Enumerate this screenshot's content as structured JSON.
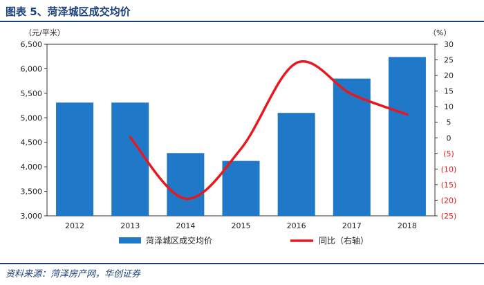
{
  "header": {
    "title": "图表 5、菏泽城区成交均价"
  },
  "chart_data": {
    "type": "bar",
    "categories": [
      "2012",
      "2013",
      "2014",
      "2015",
      "2016",
      "2017",
      "2018"
    ],
    "left_axis": {
      "unit": "（元/平米）",
      "ylim": [
        3000,
        6500
      ],
      "ticks": [
        "3,000",
        "3,500",
        "4,000",
        "4,500",
        "5,000",
        "5,500",
        "6,000",
        "6,500"
      ]
    },
    "right_axis": {
      "unit": "（%）",
      "ylim": [
        -25,
        30
      ],
      "ticks": [
        "(25)",
        "(20)",
        "(15)",
        "(10)",
        "(5)",
        "0",
        "5",
        "10",
        "15",
        "20",
        "25",
        "30"
      ]
    },
    "series": [
      {
        "name": "菏泽城区成交均价",
        "type": "bar",
        "axis": "left",
        "color": "#1f78c8",
        "values": [
          5310,
          5310,
          4280,
          4120,
          5100,
          5800,
          6240
        ]
      },
      {
        "name": "同比（右轴）",
        "type": "line",
        "axis": "right",
        "color": "#e8191e",
        "values": [
          null,
          0.2,
          -19.5,
          -3.5,
          24,
          14,
          7.5
        ]
      }
    ],
    "grid": false,
    "legend": "bottom"
  },
  "source": "资料来源：菏泽房产网，华创证券"
}
